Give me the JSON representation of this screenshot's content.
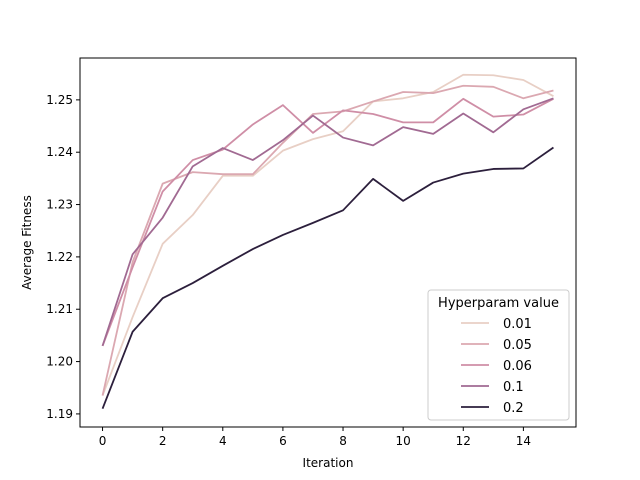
{
  "chart_data": {
    "type": "line",
    "xlabel": "Iteration",
    "ylabel": "Average Fitness",
    "xlim": [
      -0.75,
      15.75
    ],
    "ylim": [
      1.1875,
      1.258
    ],
    "xticks": [
      0,
      2,
      4,
      6,
      8,
      10,
      12,
      14
    ],
    "yticks": [
      1.19,
      1.2,
      1.21,
      1.22,
      1.23,
      1.24,
      1.25
    ],
    "grid": false,
    "legend": {
      "title": "Hyperparam value",
      "placement": "lower-right"
    },
    "x": [
      0,
      1,
      2,
      3,
      4,
      5,
      6,
      7,
      8,
      9,
      10,
      11,
      12,
      13,
      14,
      15
    ],
    "series": [
      {
        "name": "0.01",
        "color": "#e8cfc5",
        "values": [
          1.1935,
          1.2085,
          1.2225,
          1.228,
          1.2355,
          1.2355,
          1.2403,
          1.2425,
          1.244,
          1.2497,
          1.2503,
          1.2515,
          1.2548,
          1.2547,
          1.2538,
          1.2507
        ]
      },
      {
        "name": "0.05",
        "color": "#dba8b1",
        "values": [
          1.1935,
          1.219,
          1.234,
          1.2362,
          1.2358,
          1.2358,
          1.2418,
          1.2473,
          1.2478,
          1.2497,
          1.2515,
          1.2513,
          1.2527,
          1.2525,
          1.2503,
          1.2518
        ]
      },
      {
        "name": "0.06",
        "color": "#cf8ea6",
        "values": [
          1.203,
          1.218,
          1.2325,
          1.2385,
          1.2405,
          1.2453,
          1.249,
          1.2437,
          1.248,
          1.2473,
          1.2457,
          1.2457,
          1.2502,
          1.2468,
          1.2472,
          1.2502
        ]
      },
      {
        "name": "0.1",
        "color": "#a16a92",
        "values": [
          1.203,
          1.2205,
          1.2275,
          1.2373,
          1.2408,
          1.2385,
          1.2423,
          1.247,
          1.2428,
          1.2413,
          1.2448,
          1.2435,
          1.2474,
          1.2438,
          1.2482,
          1.2503
        ]
      },
      {
        "name": "0.2",
        "color": "#2c1f3c",
        "values": [
          1.191,
          1.2057,
          1.2121,
          1.215,
          1.2183,
          1.2215,
          1.2242,
          1.2265,
          1.2289,
          1.2349,
          1.2307,
          1.2342,
          1.2359,
          1.2368,
          1.2369,
          1.2409
        ]
      }
    ]
  }
}
